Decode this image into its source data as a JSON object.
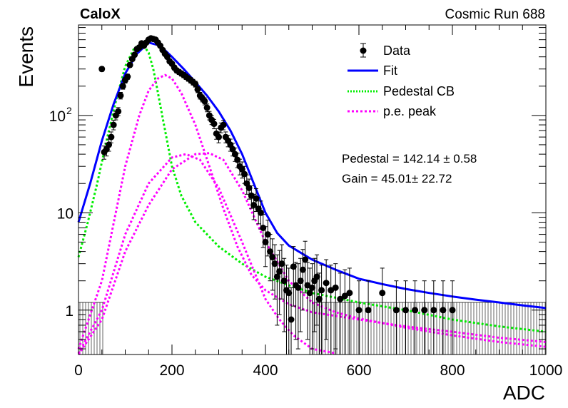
{
  "header": {
    "left_label": "CaloX",
    "right_label": "Cosmic Run 688"
  },
  "colors": {
    "data": "#000000",
    "fit": "#0000ff",
    "pedestal": "#00ee00",
    "pe_peak": "#ff00ff"
  },
  "legend": {
    "items": [
      {
        "label": "Data",
        "style": "marker"
      },
      {
        "label": "Fit",
        "style": "solid-blue"
      },
      {
        "label": "Pedestal CB",
        "style": "dotted-green"
      },
      {
        "label": "p.e. peak",
        "style": "dotted-magenta"
      }
    ]
  },
  "annotations": {
    "pedestal_text": "Pedestal = 142.14 ± 0.58",
    "gain_text": "Gain = 45.01± 22.72"
  },
  "chart_data": {
    "type": "scatter",
    "title": "",
    "xlabel": "ADC",
    "ylabel": "Events",
    "xlim": [
      0,
      1000
    ],
    "ylim": [
      0.35,
      850
    ],
    "yscale": "log",
    "x_ticks": [
      "0",
      "200",
      "400",
      "600",
      "800",
      "1000"
    ],
    "y_ticks": [
      {
        "value": 1,
        "label": "1"
      },
      {
        "value": 10,
        "label": "10"
      },
      {
        "value": 100,
        "label": "10",
        "exponent": "2"
      }
    ],
    "legend_position": "top-right",
    "series": [
      {
        "name": "Data",
        "kind": "points",
        "x": [
          50,
          55,
          60,
          65,
          70,
          75,
          80,
          85,
          90,
          95,
          100,
          105,
          110,
          115,
          120,
          125,
          130,
          135,
          140,
          145,
          150,
          155,
          160,
          165,
          170,
          175,
          180,
          185,
          190,
          195,
          200,
          205,
          210,
          215,
          220,
          225,
          230,
          235,
          240,
          245,
          250,
          255,
          260,
          265,
          270,
          275,
          280,
          285,
          290,
          295,
          300,
          305,
          310,
          315,
          320,
          325,
          330,
          335,
          340,
          345,
          350,
          355,
          360,
          365,
          370,
          375,
          380,
          385,
          390,
          395,
          400,
          405,
          410,
          415,
          420,
          425,
          430,
          435,
          440,
          445,
          450,
          455,
          460,
          465,
          470,
          475,
          480,
          485,
          490,
          495,
          500,
          505,
          510,
          515,
          520,
          530,
          540,
          550,
          560,
          570,
          580,
          600,
          620,
          650,
          680,
          700,
          720,
          740,
          760,
          780,
          800
        ],
        "y": [
          300,
          42,
          45,
          50,
          60,
          80,
          100,
          110,
          160,
          200,
          230,
          250,
          330,
          380,
          420,
          480,
          500,
          550,
          520,
          560,
          600,
          620,
          610,
          600,
          560,
          520,
          470,
          430,
          400,
          360,
          340,
          310,
          290,
          280,
          270,
          260,
          250,
          240,
          230,
          220,
          210,
          185,
          160,
          150,
          140,
          120,
          100,
          90,
          82,
          65,
          60,
          75,
          80,
          60,
          55,
          50,
          45,
          40,
          35,
          30,
          28,
          25,
          20,
          18,
          15,
          12,
          14,
          11,
          10,
          7,
          5,
          6,
          4,
          3.5,
          3,
          2.2,
          2.5,
          3,
          2,
          1.6,
          1.5,
          0.8,
          2.8,
          1.8,
          1.7,
          2,
          2.6,
          3.3,
          1.8,
          1.5,
          1.7,
          2,
          2.2,
          1.3,
          1.6,
          1.9,
          1.6,
          1.7,
          1.3,
          1.4,
          1.5,
          1,
          1,
          1.5,
          1,
          1,
          1,
          1,
          1,
          1,
          1
        ],
        "errors": [
          17,
          6.5,
          6.7,
          7.1,
          7.7,
          8.9,
          10,
          10.5,
          12.6,
          14.1,
          15.2,
          15.8,
          18.2,
          19.5,
          20.5,
          21.9,
          22.4,
          23.5,
          22.8,
          23.7,
          24.5,
          24.9,
          24.7,
          24.5,
          23.7,
          22.8,
          21.7,
          20.7,
          20,
          19,
          18.4,
          17.6,
          17,
          16.7,
          16.4,
          16.1,
          15.8,
          15.5,
          15.2,
          14.8,
          14.5,
          13.6,
          12.6,
          12.2,
          11.8,
          11,
          10,
          9.5,
          9.1,
          8.1,
          7.7,
          8.7,
          8.9,
          7.7,
          7.4,
          7.1,
          6.7,
          6.3,
          5.9,
          5.5,
          5.3,
          5,
          4.5,
          4.2,
          3.9,
          3.5,
          3.7,
          3.3,
          3.2,
          2.6,
          2.2,
          2.4,
          2,
          1.9,
          1.7,
          1.5,
          1.6,
          1.7,
          1.4,
          1.3,
          1.2,
          0.9,
          1.7,
          1.3,
          1.3,
          1.4,
          1.6,
          1.8,
          1.3,
          1.2,
          1.3,
          1.4,
          1.5,
          1.1,
          1.3,
          1.4,
          1.3,
          1.3,
          1.1,
          1.2,
          1.2,
          1,
          1,
          1.2,
          1,
          1,
          1,
          1,
          1,
          1,
          1
        ]
      },
      {
        "name": "Fit",
        "kind": "line",
        "x": [
          0,
          25,
          50,
          75,
          100,
          125,
          150,
          175,
          200,
          225,
          250,
          275,
          300,
          325,
          350,
          375,
          400,
          425,
          450,
          500,
          550,
          600,
          650,
          700,
          750,
          800,
          850,
          900,
          950,
          1000
        ],
        "y": [
          8,
          20,
          55,
          130,
          270,
          430,
          560,
          520,
          400,
          300,
          220,
          160,
          110,
          70,
          40,
          20,
          10,
          6.2,
          4.6,
          3.3,
          2.6,
          2.1,
          1.85,
          1.65,
          1.5,
          1.38,
          1.28,
          1.2,
          1.12,
          1.05
        ]
      },
      {
        "name": "Pedestal CB",
        "kind": "line",
        "x": [
          0,
          20,
          40,
          60,
          80,
          100,
          120,
          140,
          150,
          160,
          170,
          180,
          200,
          220,
          250,
          300,
          350,
          400,
          450,
          500,
          600,
          700,
          800,
          900,
          1000
        ],
        "y": [
          3.5,
          8,
          20,
          55,
          140,
          320,
          500,
          520,
          440,
          300,
          170,
          95,
          30,
          15,
          8,
          4.5,
          3,
          2.2,
          1.8,
          1.5,
          1.2,
          1,
          0.8,
          0.68,
          0.6
        ]
      },
      {
        "name": "p.e. peak",
        "kind": "line",
        "x": [
          0,
          50,
          100,
          130,
          150,
          170,
          185,
          200,
          220,
          250,
          280,
          310,
          340,
          370,
          400,
          450,
          500,
          600,
          700,
          800,
          900,
          1000
        ],
        "y": [
          0.4,
          2,
          30,
          100,
          180,
          240,
          260,
          240,
          170,
          80,
          30,
          11,
          4.5,
          2.3,
          1.6,
          1.15,
          0.95,
          0.8,
          0.68,
          0.6,
          0.52,
          0.47
        ]
      },
      {
        "name": "p.e. peak",
        "kind": "line",
        "x": [
          0,
          50,
          100,
          150,
          200,
          230,
          260,
          300,
          350,
          400,
          430,
          460,
          500,
          550
        ],
        "y": [
          0.36,
          1,
          6,
          20,
          37,
          40,
          35,
          18,
          5,
          1.3,
          0.8,
          0.55,
          0.4,
          0.36
        ]
      },
      {
        "name": "p.e. peak",
        "kind": "line",
        "x": [
          0,
          50,
          100,
          150,
          200,
          250,
          280,
          310,
          350,
          400,
          450,
          500,
          550,
          600,
          700,
          800,
          900,
          1000
        ],
        "y": [
          0.35,
          0.8,
          4,
          12,
          28,
          40,
          41,
          35,
          17,
          5,
          2,
          1.2,
          0.95,
          0.82,
          0.66,
          0.55,
          0.47,
          0.42
        ]
      }
    ]
  }
}
